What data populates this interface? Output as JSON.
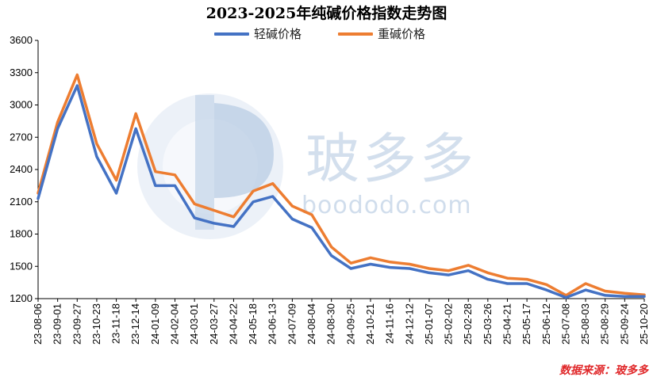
{
  "chart_data": {
    "type": "line",
    "title": "2023-2025年纯碱价格指数走势图",
    "xlabel": "",
    "ylabel": "",
    "ylim": [
      1200,
      3600
    ],
    "yticks": [
      1200,
      1500,
      1800,
      2100,
      2400,
      2700,
      3000,
      3300,
      3600
    ],
    "x": [
      "23-08-06",
      "23-09-01",
      "23-09-27",
      "23-10-23",
      "23-11-18",
      "23-12-14",
      "24-01-09",
      "24-02-04",
      "24-03-01",
      "24-03-27",
      "24-04-22",
      "24-05-18",
      "24-06-13",
      "24-07-09",
      "24-08-04",
      "24-08-30",
      "24-09-25",
      "24-10-21",
      "24-11-16",
      "24-12-12",
      "25-01-07",
      "25-02-02",
      "25-02-28",
      "25-03-26",
      "25-04-21",
      "25-05-17",
      "25-06-12",
      "25-07-08",
      "25-08-03",
      "25-08-29",
      "25-09-24",
      "25-10-20"
    ],
    "grid": false,
    "legend_position": "top",
    "series": [
      {
        "name": "轻碱价格",
        "color": "#4472c4",
        "values": [
          2130,
          2780,
          3180,
          2520,
          2180,
          2780,
          2250,
          2250,
          1950,
          1900,
          1870,
          2100,
          2150,
          1940,
          1860,
          1600,
          1480,
          1520,
          1490,
          1480,
          1440,
          1420,
          1460,
          1380,
          1340,
          1340,
          1280,
          1210,
          1280,
          1230,
          1220,
          1220
        ]
      },
      {
        "name": "重碱价格",
        "color": "#ed7d31",
        "values": [
          2180,
          2840,
          3280,
          2640,
          2300,
          2920,
          2380,
          2350,
          2080,
          2020,
          1960,
          2200,
          2270,
          2060,
          1980,
          1680,
          1530,
          1580,
          1540,
          1520,
          1480,
          1460,
          1510,
          1440,
          1390,
          1380,
          1330,
          1230,
          1340,
          1270,
          1250,
          1235
        ]
      }
    ]
  },
  "page": {
    "source_text": "数据来源：玻多多",
    "watermark_text": "玻多多",
    "watermark_url": "boododo.com"
  }
}
